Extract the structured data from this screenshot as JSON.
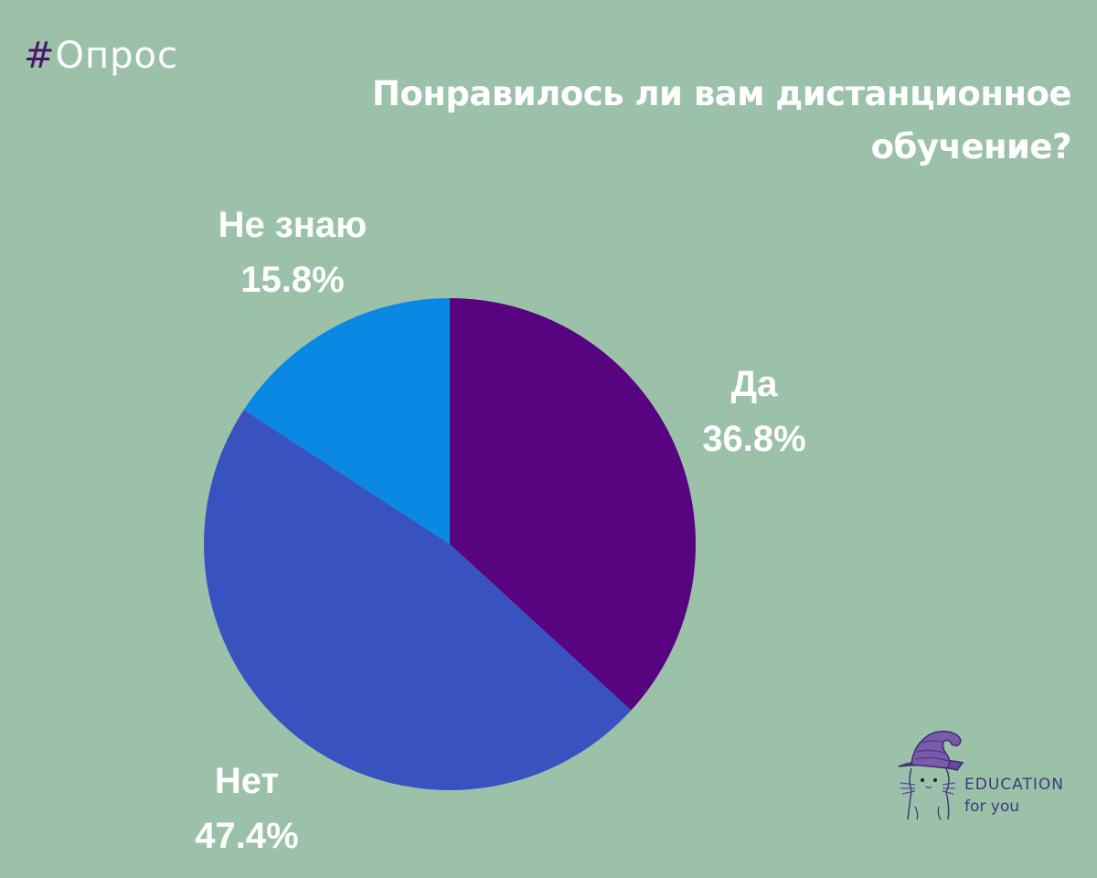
{
  "header": {
    "hashtag_symbol": "#",
    "hashtag_word": "Опрос",
    "title": "Понравилось ли вам дистанционное обучение?"
  },
  "colors": {
    "background": "#9bc1a9",
    "yes": "#58037f",
    "no": "#3853c0",
    "dont_know": "#0a88e4",
    "label_text": "#ffffff",
    "hash": "#4b1270"
  },
  "labels": {
    "yes": {
      "name": "Да",
      "pct": "36.8%"
    },
    "no": {
      "name": "Нет",
      "pct": "47.4%"
    },
    "dont_know": {
      "name": "Не знаю",
      "pct": "15.8%"
    }
  },
  "logo": {
    "line1": "EDUCATION",
    "line2": "for you"
  },
  "chart_data": {
    "type": "pie",
    "title": "Понравилось ли вам дистанционное обучение?",
    "categories": [
      "Да",
      "Нет",
      "Не знаю"
    ],
    "values": [
      36.8,
      47.4,
      15.8
    ],
    "unit": "%",
    "colors": [
      "#58037f",
      "#3853c0",
      "#0a88e4"
    ],
    "start_angle": "12 o'clock, clockwise",
    "legend": "none (direct labels)"
  }
}
